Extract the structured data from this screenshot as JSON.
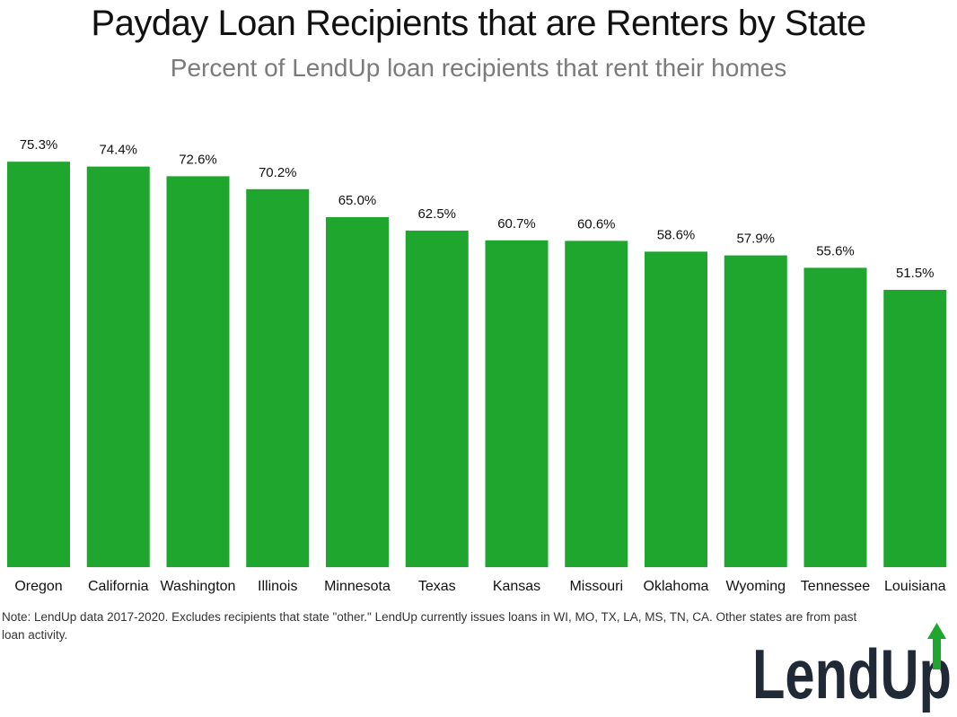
{
  "title": "Payday Loan Recipients that are Renters by State",
  "subtitle": "Percent of LendUp loan recipients that rent their homes",
  "note": "Note: LendUp data 2017-2020. Excludes recipients that state \"other.\" LendUp currently issues loans in WI, MO, TX, LA, MS, TN, CA. Other states are from past loan activity.",
  "logo": {
    "text": "LendUp",
    "icon": "up-arrow-icon",
    "text_color": "#1f2a36",
    "accent_color": "#1ea62f"
  },
  "colors": {
    "bar": "#1ea62f"
  },
  "chart_data": {
    "type": "bar",
    "title": "Payday Loan Recipients that are Renters by State",
    "subtitle": "Percent of LendUp loan recipients that rent their homes",
    "categories": [
      "Oregon",
      "California",
      "Washington",
      "Illinois",
      "Minnesota",
      "Texas",
      "Kansas",
      "Missouri",
      "Oklahoma",
      "Wyoming",
      "Tennessee",
      "Louisiana"
    ],
    "values": [
      75.3,
      74.4,
      72.6,
      70.2,
      65.0,
      62.5,
      60.7,
      60.6,
      58.6,
      57.9,
      55.6,
      51.5
    ],
    "value_labels": [
      "75.3%",
      "74.4%",
      "72.6%",
      "70.2%",
      "65.0%",
      "62.5%",
      "60.7%",
      "60.6%",
      "58.6%",
      "57.9%",
      "55.6%",
      "51.5%"
    ],
    "xlabel": "",
    "ylabel": "",
    "ylim": [
      0,
      80
    ],
    "grid": false,
    "legend": "none"
  }
}
